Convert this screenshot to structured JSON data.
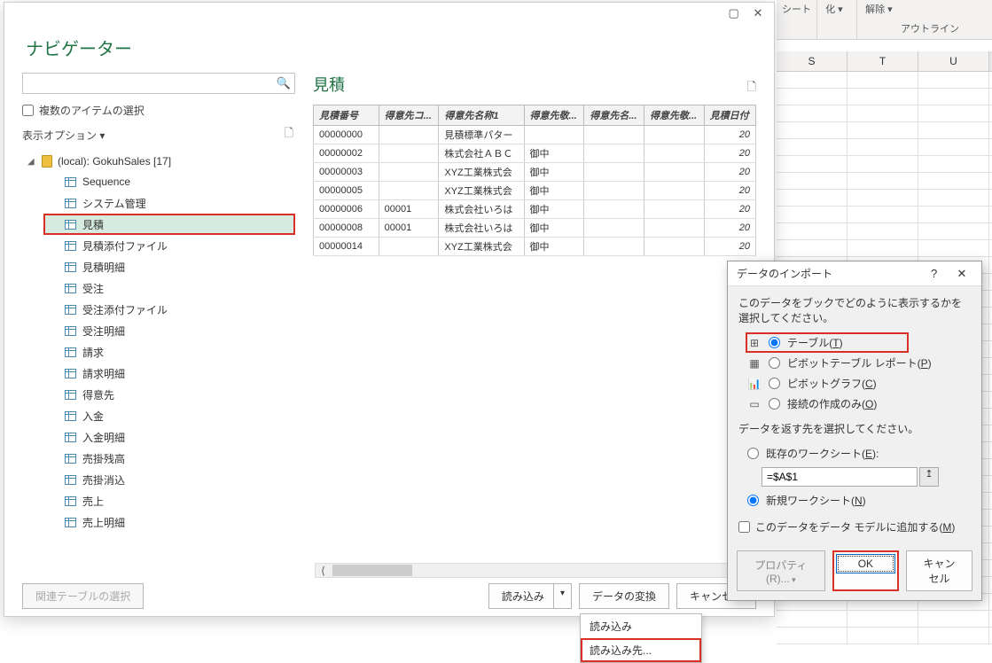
{
  "excel_bg": {
    "sheet_label": "シート",
    "group_label": "化 ▾",
    "unlock_label": "解除 ▾",
    "outline_label": "アウトライン",
    "columns": [
      "S",
      "T",
      "U"
    ]
  },
  "navigator": {
    "title": "ナビゲーター",
    "search_placeholder": "",
    "multi_select_label": "複数のアイテムの選択",
    "display_options_label": "表示オプション ▾",
    "db_label": "(local): GokuhSales [17]",
    "tree_items": [
      {
        "label": "Sequence"
      },
      {
        "label": "システム管理"
      },
      {
        "label": "見積",
        "selected": true,
        "highlighted": true
      },
      {
        "label": "見積添付ファイル"
      },
      {
        "label": "見積明細"
      },
      {
        "label": "受注"
      },
      {
        "label": "受注添付ファイル"
      },
      {
        "label": "受注明細"
      },
      {
        "label": "請求"
      },
      {
        "label": "請求明細"
      },
      {
        "label": "得意先"
      },
      {
        "label": "入金"
      },
      {
        "label": "入金明細"
      },
      {
        "label": "売掛残高"
      },
      {
        "label": "売掛消込"
      },
      {
        "label": "売上"
      },
      {
        "label": "売上明細"
      }
    ],
    "preview_title": "見積",
    "preview_columns": [
      "見積番号",
      "得意先コ...",
      "得意先名称1",
      "得意先敬...",
      "得意先名...",
      "得意先敬...",
      "見積日付"
    ],
    "preview_rows": [
      [
        "00000000",
        "",
        "見積標準パター",
        "",
        "",
        "",
        "20"
      ],
      [
        "00000002",
        "",
        "株式会社ＡＢＣ",
        "御中",
        "",
        "",
        "20"
      ],
      [
        "00000003",
        "",
        "XYZ工業株式会",
        "御中",
        "",
        "",
        "20"
      ],
      [
        "00000005",
        "",
        "XYZ工業株式会",
        "御中",
        "",
        "",
        "20"
      ],
      [
        "00000006",
        "00001",
        "株式会社いろは",
        "御中",
        "",
        "",
        "20"
      ],
      [
        "00000008",
        "00001",
        "株式会社いろは",
        "御中",
        "",
        "",
        "20"
      ],
      [
        "00000014",
        "",
        "XYZ工業株式会",
        "御中",
        "",
        "",
        "20"
      ]
    ],
    "footer": {
      "related_tables": "関連テーブルの選択",
      "load": "読み込み",
      "transform": "データの変換",
      "cancel": "キャンセル"
    },
    "dropdown": {
      "item1": "読み込み",
      "item2": "読み込み先..."
    }
  },
  "import_dialog": {
    "title": "データのインポート",
    "prompt1": "このデータをブックでどのように表示するかを選択してください。",
    "opt_table": "テーブル(",
    "opt_table_key": "T",
    "opt_pivot": "ピボットテーブル レポート(",
    "opt_pivot_key": "P",
    "opt_chart": "ピボットグラフ(",
    "opt_chart_key": "C",
    "opt_conn": "接続の作成のみ(",
    "opt_conn_key": "O",
    "prompt2": "データを返す先を選択してください。",
    "opt_existing": "既存のワークシート(",
    "opt_existing_key": "E",
    "ref_value": "=$A$1",
    "opt_new": "新規ワークシート(",
    "opt_new_key": "N",
    "model_label": "このデータをデータ モデルに追加する(",
    "model_key": "M",
    "properties": "プロパティ(R)...",
    "ok": "OK",
    "cancel": "キャンセル"
  }
}
